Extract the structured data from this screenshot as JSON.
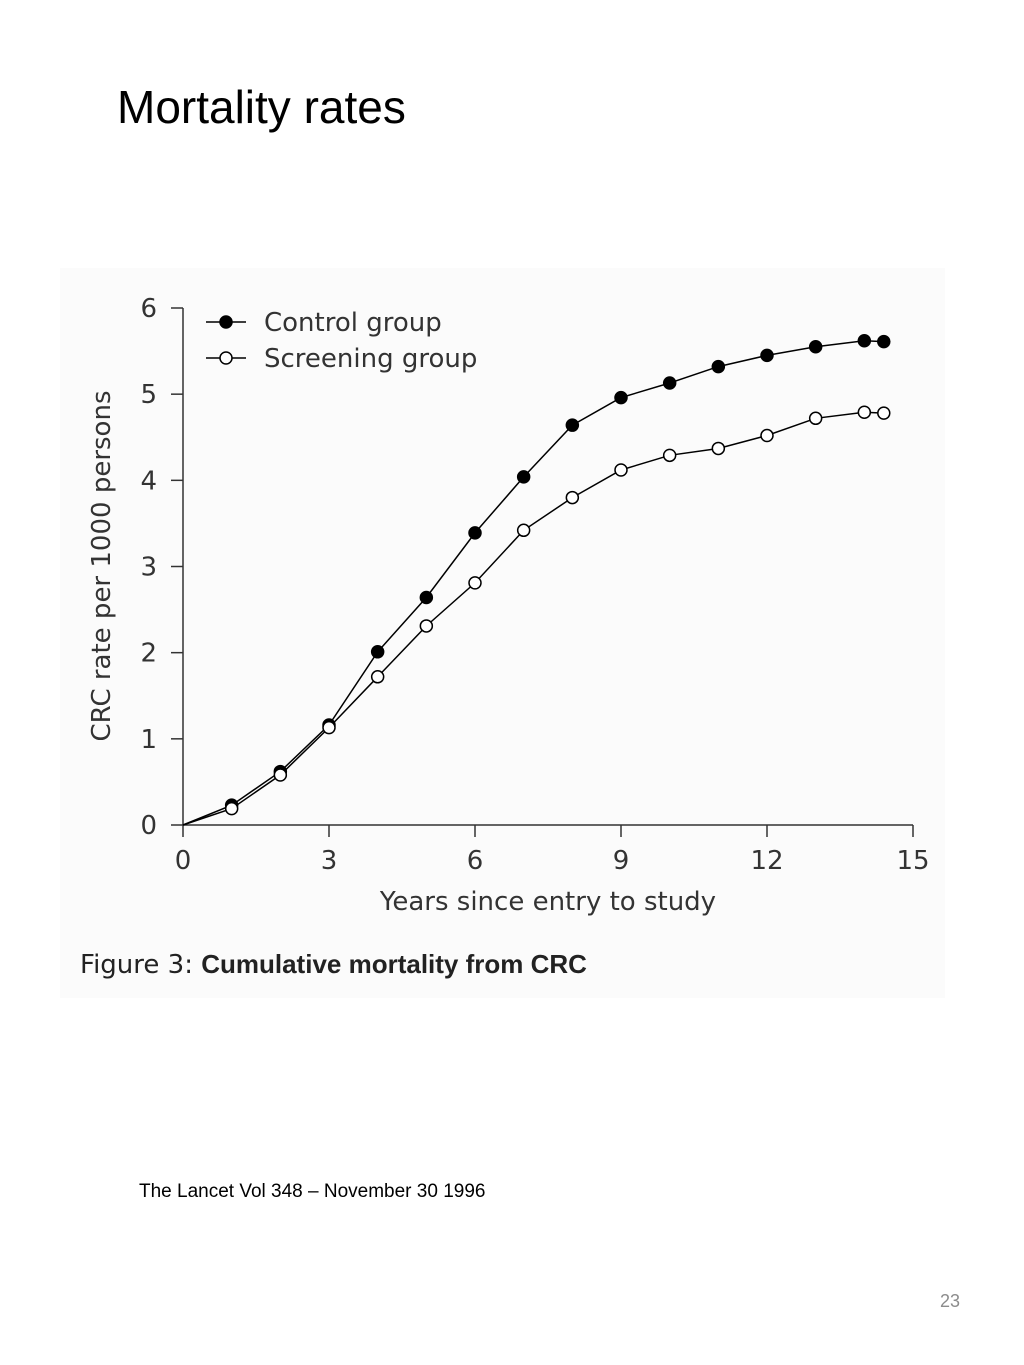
{
  "slide": {
    "title": "Mortality rates",
    "source": "The Lancet Vol 348 – November 30 1996",
    "page_number": "23"
  },
  "figure": {
    "caption_prefix": "Figure 3: ",
    "caption_title": "Cumulative mortality from CRC"
  },
  "chart_data": {
    "type": "line",
    "title": "",
    "xlabel": "Years since entry to study",
    "ylabel": "CRC rate per 1000 persons",
    "xlim": [
      0,
      15
    ],
    "ylim": [
      0,
      6
    ],
    "xticks": [
      0,
      3,
      6,
      9,
      12,
      15
    ],
    "yticks": [
      0,
      1,
      2,
      3,
      4,
      5,
      6
    ],
    "grid": false,
    "legend_position": "top-left",
    "series": [
      {
        "name": "Control group",
        "marker": "filled-circle",
        "color": "#000000",
        "x": [
          0,
          1,
          2,
          3,
          4,
          5,
          6,
          7,
          8,
          9,
          10,
          11,
          12,
          13,
          14,
          14.4
        ],
        "y": [
          0,
          0.23,
          0.62,
          1.16,
          2.01,
          2.64,
          3.39,
          4.04,
          4.64,
          4.96,
          5.13,
          5.32,
          5.45,
          5.55,
          5.62,
          5.61
        ]
      },
      {
        "name": "Screening group",
        "marker": "open-circle",
        "color": "#000000",
        "x": [
          0,
          1,
          2,
          3,
          4,
          5,
          6,
          7,
          8,
          9,
          10,
          11,
          12,
          13,
          14,
          14.4
        ],
        "y": [
          0,
          0.19,
          0.58,
          1.13,
          1.72,
          2.31,
          2.81,
          3.42,
          3.8,
          4.12,
          4.29,
          4.37,
          4.52,
          4.72,
          4.79,
          4.78
        ]
      }
    ]
  }
}
